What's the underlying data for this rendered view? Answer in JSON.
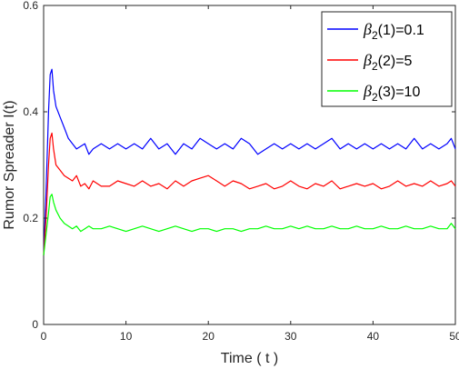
{
  "chart_data": {
    "type": "line",
    "xlabel": "Time ( t )",
    "ylabel": "Rumor Spreader I(t)",
    "xlim": [
      0,
      50
    ],
    "ylim": [
      0,
      0.6
    ],
    "xticks": [
      0,
      10,
      20,
      30,
      40,
      50
    ],
    "yticks": [
      0,
      0.2,
      0.4,
      0.6
    ],
    "xtick_labels": [
      "0",
      "10",
      "20",
      "30",
      "40",
      "50"
    ],
    "ytick_labels": [
      "0",
      "0.2",
      "0.4",
      "0.6"
    ],
    "grid": false,
    "legend_position": "top-right",
    "series": [
      {
        "label_symbol": "β",
        "label_sub": "2",
        "label_rest": "(1)=0.1",
        "color": "#0000ff",
        "x": [
          0,
          0.3,
          0.6,
          0.8,
          1,
          1.2,
          1.5,
          2,
          2.5,
          3,
          3.5,
          4,
          4.5,
          5,
          5.5,
          6,
          7,
          8,
          9,
          10,
          11,
          12,
          13,
          14,
          15,
          16,
          17,
          18,
          19,
          20,
          21,
          22,
          23,
          24,
          25,
          26,
          27,
          28,
          29,
          30,
          31,
          32,
          33,
          34,
          35,
          36,
          37,
          38,
          39,
          40,
          41,
          42,
          43,
          44,
          45,
          46,
          47,
          48,
          49,
          49.5,
          50
        ],
        "y": [
          0.13,
          0.25,
          0.4,
          0.47,
          0.48,
          0.44,
          0.41,
          0.39,
          0.37,
          0.35,
          0.34,
          0.33,
          0.335,
          0.34,
          0.32,
          0.33,
          0.34,
          0.33,
          0.34,
          0.33,
          0.34,
          0.33,
          0.35,
          0.33,
          0.34,
          0.32,
          0.34,
          0.33,
          0.35,
          0.34,
          0.33,
          0.34,
          0.33,
          0.35,
          0.34,
          0.32,
          0.33,
          0.34,
          0.33,
          0.34,
          0.33,
          0.34,
          0.33,
          0.34,
          0.35,
          0.33,
          0.34,
          0.33,
          0.34,
          0.33,
          0.34,
          0.33,
          0.34,
          0.33,
          0.35,
          0.33,
          0.34,
          0.33,
          0.34,
          0.35,
          0.33
        ]
      },
      {
        "label_symbol": "β",
        "label_sub": "2",
        "label_rest": "(2)=5",
        "color": "#ff0000",
        "x": [
          0,
          0.3,
          0.6,
          0.8,
          1,
          1.2,
          1.5,
          2,
          2.5,
          3,
          3.5,
          4,
          4.5,
          5,
          5.5,
          6,
          7,
          8,
          9,
          10,
          11,
          12,
          13,
          14,
          15,
          16,
          17,
          18,
          19,
          20,
          21,
          22,
          23,
          24,
          25,
          26,
          27,
          28,
          29,
          30,
          31,
          32,
          33,
          34,
          35,
          36,
          37,
          38,
          39,
          40,
          41,
          42,
          43,
          44,
          45,
          46,
          47,
          48,
          49,
          49.5,
          50
        ],
        "y": [
          0.13,
          0.2,
          0.3,
          0.35,
          0.36,
          0.33,
          0.3,
          0.29,
          0.28,
          0.275,
          0.27,
          0.28,
          0.26,
          0.265,
          0.255,
          0.27,
          0.26,
          0.26,
          0.27,
          0.265,
          0.26,
          0.27,
          0.26,
          0.265,
          0.255,
          0.27,
          0.26,
          0.27,
          0.275,
          0.28,
          0.27,
          0.26,
          0.27,
          0.265,
          0.255,
          0.26,
          0.265,
          0.255,
          0.26,
          0.27,
          0.26,
          0.255,
          0.265,
          0.26,
          0.27,
          0.255,
          0.26,
          0.265,
          0.26,
          0.265,
          0.255,
          0.26,
          0.27,
          0.26,
          0.265,
          0.26,
          0.27,
          0.26,
          0.265,
          0.27,
          0.26
        ]
      },
      {
        "label_symbol": "β",
        "label_sub": "2",
        "label_rest": "(3)=10",
        "color": "#00ff00",
        "x": [
          0,
          0.3,
          0.6,
          0.8,
          1,
          1.2,
          1.5,
          2,
          2.5,
          3,
          3.5,
          4,
          4.5,
          5,
          5.5,
          6,
          7,
          8,
          9,
          10,
          11,
          12,
          13,
          14,
          15,
          16,
          17,
          18,
          19,
          20,
          21,
          22,
          23,
          24,
          25,
          26,
          27,
          28,
          29,
          30,
          31,
          32,
          33,
          34,
          35,
          36,
          37,
          38,
          39,
          40,
          41,
          42,
          43,
          44,
          45,
          46,
          47,
          48,
          49,
          49.5,
          50
        ],
        "y": [
          0.13,
          0.17,
          0.21,
          0.24,
          0.245,
          0.23,
          0.215,
          0.2,
          0.19,
          0.185,
          0.18,
          0.185,
          0.175,
          0.18,
          0.185,
          0.18,
          0.18,
          0.185,
          0.18,
          0.175,
          0.18,
          0.185,
          0.18,
          0.175,
          0.18,
          0.185,
          0.18,
          0.175,
          0.18,
          0.18,
          0.175,
          0.18,
          0.18,
          0.175,
          0.18,
          0.18,
          0.185,
          0.18,
          0.18,
          0.185,
          0.18,
          0.185,
          0.18,
          0.18,
          0.185,
          0.18,
          0.18,
          0.185,
          0.18,
          0.18,
          0.185,
          0.18,
          0.18,
          0.185,
          0.18,
          0.18,
          0.185,
          0.18,
          0.18,
          0.19,
          0.18
        ]
      }
    ]
  }
}
